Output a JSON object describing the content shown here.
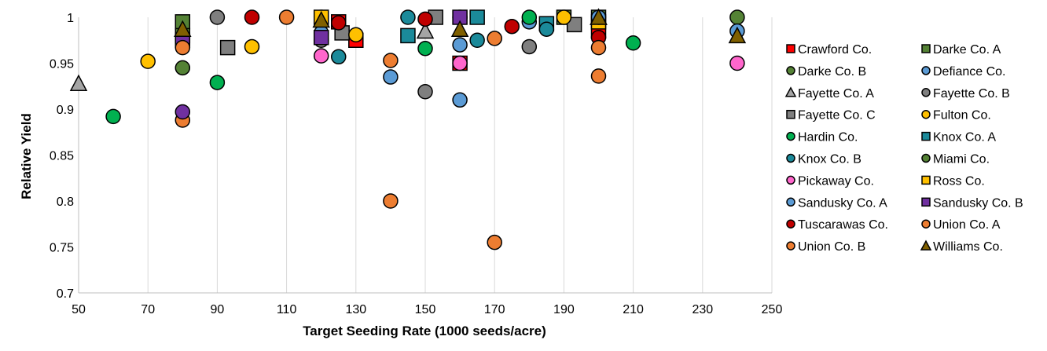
{
  "chart_data": {
    "type": "scatter",
    "title": "",
    "xlabel": "Target Seeding Rate (1000 seeds/acre)",
    "ylabel": "Relative Yield",
    "xlim": [
      50,
      250
    ],
    "ylim": [
      0.7,
      1.0
    ],
    "xticks": [
      50,
      70,
      90,
      110,
      130,
      150,
      170,
      190,
      210,
      230,
      250
    ],
    "xtick_labels": [
      "50",
      "70",
      "90",
      "110",
      "130",
      "150",
      "170",
      "190",
      "210",
      "230",
      "250"
    ],
    "yticks": [
      0.7,
      0.75,
      0.8,
      0.85,
      0.9,
      0.95,
      1.0
    ],
    "ytick_labels": [
      "0.7",
      "0.75",
      "0.8",
      "0.85",
      "0.9",
      "0.95",
      "1"
    ],
    "grid": "vertical",
    "legend_position": "right",
    "series": [
      {
        "name": "Crawford Co.",
        "marker": "square",
        "color": "#ff0000",
        "points": [
          [
            125,
            0.995
          ],
          [
            130,
            0.975
          ],
          [
            160,
            0.95
          ],
          [
            200,
            0.985
          ]
        ]
      },
      {
        "name": "Darke Co. A",
        "marker": "square",
        "color": "#548235",
        "points": [
          [
            80,
            0.995
          ],
          [
            80,
            0.98
          ],
          [
            190,
            1.0
          ],
          [
            200,
            1.0
          ]
        ]
      },
      {
        "name": "Darke  Co. B",
        "marker": "circle",
        "color": "#548235",
        "points": [
          [
            80,
            0.945
          ],
          [
            240,
            1.0
          ]
        ]
      },
      {
        "name": "Defiance Co.",
        "marker": "circle",
        "color": "#5b9bd5",
        "points": [
          [
            160,
            1.0
          ],
          [
            180,
            0.995
          ],
          [
            240,
            0.985
          ]
        ]
      },
      {
        "name": "Fayette Co. A",
        "marker": "triangle",
        "color": "#a5a5a5",
        "points": [
          [
            50,
            0.928
          ],
          [
            150,
            0.985
          ],
          [
            200,
            1.0
          ]
        ]
      },
      {
        "name": "Fayette Co. B",
        "marker": "circle",
        "color": "#7f7f7f",
        "points": [
          [
            90,
            1.0
          ],
          [
            120,
            0.975
          ],
          [
            150,
            0.919
          ],
          [
            180,
            0.968
          ]
        ]
      },
      {
        "name": "Fayette Co. C",
        "marker": "square",
        "color": "#7f7f7f",
        "points": [
          [
            93,
            0.967
          ],
          [
            126,
            0.983
          ],
          [
            153,
            1.0
          ],
          [
            193,
            0.992
          ]
        ]
      },
      {
        "name": "Fulton Co.",
        "marker": "circle",
        "color": "#ffc000",
        "points": [
          [
            70,
            0.952
          ],
          [
            100,
            0.968
          ],
          [
            130,
            0.981
          ],
          [
            190,
            1.0
          ]
        ]
      },
      {
        "name": "Hardin Co.",
        "marker": "circle",
        "color": "#00b050",
        "points": [
          [
            60,
            0.892
          ],
          [
            90,
            0.929
          ],
          [
            150,
            0.966
          ],
          [
            180,
            1.0
          ],
          [
            210,
            0.972
          ]
        ]
      },
      {
        "name": "Knox Co. A",
        "marker": "square",
        "color": "#1b8a9a",
        "points": [
          [
            145,
            0.98
          ],
          [
            165,
            1.0
          ],
          [
            185,
            0.993
          ]
        ]
      },
      {
        "name": "Knox Co. B",
        "marker": "circle",
        "color": "#1b8a9a",
        "points": [
          [
            125,
            0.957
          ],
          [
            145,
            1.0
          ],
          [
            165,
            0.975
          ],
          [
            185,
            0.987
          ]
        ]
      },
      {
        "name": "Miami Co.",
        "marker": "circle",
        "color": "#548235",
        "points": [
          [
            120,
            1.0
          ]
        ]
      },
      {
        "name": "Pickaway Co.",
        "marker": "circle",
        "color": "#ff66cc",
        "points": [
          [
            120,
            0.958
          ],
          [
            160,
            0.95
          ],
          [
            240,
            0.95
          ]
        ]
      },
      {
        "name": "Ross Co.",
        "marker": "square",
        "color": "#ffc000",
        "points": [
          [
            120,
            1.0
          ],
          [
            200,
            0.995
          ]
        ]
      },
      {
        "name": "Sandusky Co. A",
        "marker": "circle",
        "color": "#5b9bd5",
        "points": [
          [
            120,
            0.983
          ],
          [
            140,
            0.935
          ],
          [
            160,
            0.97
          ],
          [
            160,
            0.91
          ],
          [
            200,
            1.0
          ]
        ]
      },
      {
        "name": "Sandusky Co. B",
        "marker": "square",
        "color": "#7030a0",
        "points": [
          [
            80,
            0.975
          ],
          [
            120,
            0.978
          ],
          [
            160,
            1.0
          ]
        ]
      },
      {
        "name": "Tuscarawas Co.",
        "marker": "circle",
        "color": "#c00000",
        "points": [
          [
            100,
            1.0
          ],
          [
            125,
            0.994
          ],
          [
            150,
            0.998
          ],
          [
            175,
            0.99
          ],
          [
            200,
            0.978
          ]
        ]
      },
      {
        "name": "Union Co. A",
        "marker": "circle",
        "color": "#ed7d31",
        "points": [
          [
            80,
            0.888
          ],
          [
            140,
            0.8
          ],
          [
            170,
            0.755
          ],
          [
            200,
            0.936
          ]
        ]
      },
      {
        "name": "Union Co. B",
        "marker": "circle",
        "color": "#ed7d31",
        "points": [
          [
            80,
            0.967
          ],
          [
            110,
            1.0
          ],
          [
            140,
            0.953
          ],
          [
            170,
            0.977
          ],
          [
            200,
            0.967
          ]
        ]
      },
      {
        "name": "Williams Co.",
        "marker": "triangle",
        "color": "#806000",
        "points": [
          [
            80,
            0.987
          ],
          [
            120,
            0.997
          ],
          [
            160,
            0.987
          ],
          [
            200,
            1.0
          ],
          [
            240,
            0.98
          ]
        ]
      }
    ],
    "extra_points": [
      {
        "marker": "circle",
        "color": "#7030a0",
        "points": [
          [
            80,
            0.897
          ]
        ]
      }
    ]
  }
}
